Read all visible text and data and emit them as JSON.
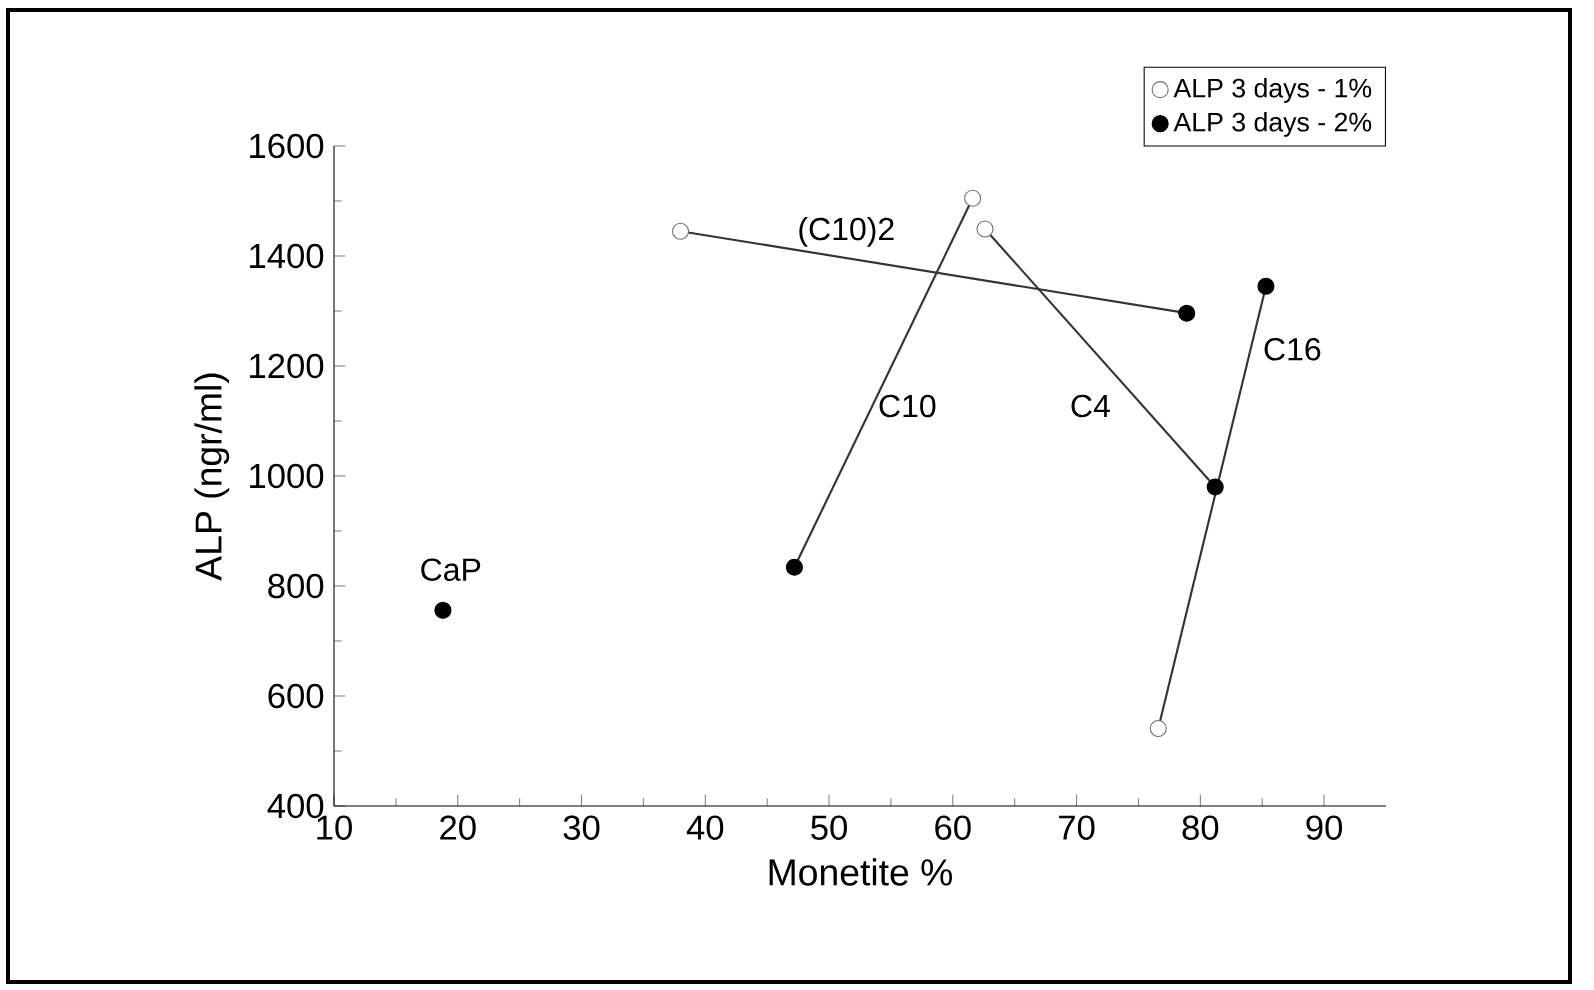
{
  "chart_data": {
    "type": "scatter",
    "xlabel": "Monetite %",
    "ylabel": "ALP (ngr/ml)",
    "xlim": [
      10,
      95
    ],
    "ylim": [
      400,
      1600
    ],
    "xticks": [
      10,
      20,
      30,
      40,
      50,
      60,
      70,
      80,
      90
    ],
    "yticks": [
      400,
      600,
      800,
      1000,
      1200,
      1400,
      1600
    ],
    "legend": "top right",
    "marker": "circle",
    "series": [
      {
        "type": "line",
        "color": "#333333",
        "marker": "none",
        "x": [
          38.0,
          78.9
        ],
        "values": [
          1445,
          1296
        ]
      },
      {
        "type": "line",
        "color": "#333333",
        "marker": "none",
        "x": [
          47.2,
          61.6
        ],
        "values": [
          834,
          1505
        ]
      },
      {
        "type": "line",
        "color": "#333333",
        "marker": "none",
        "x": [
          62.6,
          81.2
        ],
        "values": [
          1449,
          980
        ]
      },
      {
        "type": "line",
        "color": "#333333",
        "marker": "none",
        "x": [
          76.6,
          85.3
        ],
        "values": [
          541,
          1345
        ]
      },
      {
        "name": "ALP 3 days - 1%",
        "color": "#ffffff",
        "x": [
          38.0,
          61.6,
          62.6,
          76.6
        ],
        "values": [
          1445,
          1505,
          1449,
          541
        ]
      },
      {
        "name": "ALP 3 days - 2%",
        "color": "#000000",
        "x": [
          18.8,
          47.2,
          78.9,
          81.2,
          85.3
        ],
        "values": [
          756,
          834,
          1296,
          980,
          1345
        ]
      }
    ],
    "annotations": [
      "(C10)2",
      "C10",
      "C4",
      "C16",
      "CaP"
    ]
  }
}
